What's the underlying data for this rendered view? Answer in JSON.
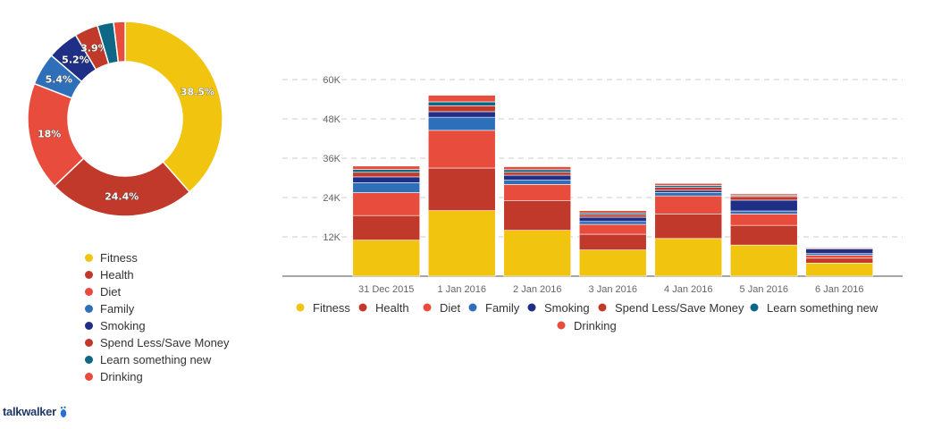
{
  "chart_data": [
    {
      "type": "pie",
      "variant": "donut",
      "slices": [
        {
          "name": "Fitness",
          "value": 38.5,
          "label": "38.5%",
          "color": "#f1c40f"
        },
        {
          "name": "Health",
          "value": 24.4,
          "label": "24.4%",
          "color": "#c0392b"
        },
        {
          "name": "Diet",
          "value": 18,
          "label": "18%",
          "color": "#e74c3c"
        },
        {
          "name": "Family",
          "value": 5.4,
          "label": "5.4%",
          "color": "#2e6fba"
        },
        {
          "name": "Smoking",
          "value": 5.2,
          "label": "5.2%",
          "color": "#1f2f86"
        },
        {
          "name": "Spend Less/Save Money",
          "value": 3.9,
          "label": "3.9%",
          "color": "#c0392b"
        },
        {
          "name": "Learn something new",
          "value": 2.7,
          "label": "",
          "color": "#0e6785"
        },
        {
          "name": "Drinking",
          "value": 1.9,
          "label": "",
          "color": "#e74c3c"
        }
      ],
      "legend": [
        "Fitness",
        "Health",
        "Diet",
        "Family",
        "Smoking",
        "Spend Less/Save Money",
        "Learn something new",
        "Drinking"
      ],
      "legend_position": "bottom"
    },
    {
      "type": "bar",
      "stacked": true,
      "categories": [
        "31 Dec 2015",
        "1 Jan 2016",
        "2 Jan 2016",
        "3 Jan 2016",
        "4 Jan 2016",
        "5 Jan 2016",
        "6 Jan 2016"
      ],
      "series": [
        {
          "name": "Fitness",
          "color": "#f1c40f",
          "values": [
            11000,
            20000,
            14000,
            8000,
            11500,
            9500,
            4000
          ]
        },
        {
          "name": "Health",
          "color": "#c0392b",
          "values": [
            7500,
            13000,
            9000,
            4800,
            7500,
            6000,
            1500
          ]
        },
        {
          "name": "Diet",
          "color": "#e74c3c",
          "values": [
            7000,
            11500,
            5000,
            3000,
            5500,
            3500,
            900
          ]
        },
        {
          "name": "Family",
          "color": "#2e6fba",
          "values": [
            3000,
            4000,
            1300,
            900,
            1000,
            900,
            500
          ]
        },
        {
          "name": "Smoking",
          "color": "#1f2f86",
          "values": [
            1800,
            1700,
            1500,
            1300,
            700,
            3300,
            1400
          ]
        },
        {
          "name": "Spend Less/Save Money",
          "color": "#c0392b",
          "values": [
            1400,
            1800,
            900,
            800,
            900,
            1100,
            300
          ]
        },
        {
          "name": "Learn something new",
          "color": "#0e6785",
          "values": [
            900,
            1200,
            800,
            500,
            600,
            300,
            200
          ]
        },
        {
          "name": "Drinking",
          "color": "#e74c3c",
          "values": [
            1000,
            2000,
            900,
            700,
            600,
            500,
            100
          ]
        }
      ],
      "y_ticks": [
        "12K",
        "24K",
        "36K",
        "48K",
        "60K"
      ],
      "ylim": [
        0,
        60000
      ],
      "grid": "horizontal dashed",
      "legend_position": "bottom"
    }
  ],
  "brand": {
    "logo_text": "talkwalker"
  }
}
